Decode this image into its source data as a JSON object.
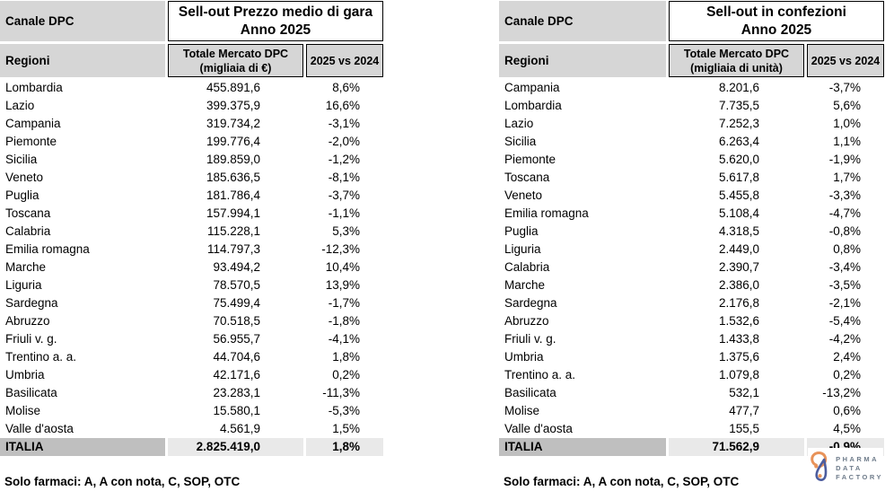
{
  "chart_data": [
    {
      "type": "table",
      "corner_label": "Canale DPC",
      "title_line1": "Sell-out Prezzo medio di gara",
      "title_line2": "Anno 2025",
      "row_dim_label": "Regioni",
      "value_col_line1": "Totale Mercato DPC",
      "value_col_line2": "(migliaia di €)",
      "pct_col": "2025 vs 2024",
      "rows": [
        [
          "Lombardia",
          "455.891,6",
          "8,6%"
        ],
        [
          "Lazio",
          "399.375,9",
          "16,6%"
        ],
        [
          "Campania",
          "319.734,2",
          "-3,1%"
        ],
        [
          "Piemonte",
          "199.776,4",
          "-2,0%"
        ],
        [
          "Sicilia",
          "189.859,0",
          "-1,2%"
        ],
        [
          "Veneto",
          "185.636,5",
          "-8,1%"
        ],
        [
          "Puglia",
          "181.786,4",
          "-3,7%"
        ],
        [
          "Toscana",
          "157.994,1",
          "-1,1%"
        ],
        [
          "Calabria",
          "115.228,1",
          "5,3%"
        ],
        [
          "Emilia romagna",
          "114.797,3",
          "-12,3%"
        ],
        [
          "Marche",
          "93.494,2",
          "10,4%"
        ],
        [
          "Liguria",
          "78.570,5",
          "13,9%"
        ],
        [
          "Sardegna",
          "75.499,4",
          "-1,7%"
        ],
        [
          "Abruzzo",
          "70.518,5",
          "-1,8%"
        ],
        [
          "Friuli v. g.",
          "56.955,7",
          "-4,1%"
        ],
        [
          "Trentino a. a.",
          "44.704,6",
          "1,8%"
        ],
        [
          "Umbria",
          "42.171,6",
          "0,2%"
        ],
        [
          "Basilicata",
          "23.283,1",
          "-11,3%"
        ],
        [
          "Molise",
          "15.580,1",
          "-5,3%"
        ],
        [
          "Valle d'aosta",
          "4.561,9",
          "1,5%"
        ]
      ],
      "total": [
        "ITALIA",
        "2.825.419,0",
        "1,8%"
      ],
      "footnote": "Solo farmaci: A, A con nota, C, SOP, OTC"
    },
    {
      "type": "table",
      "corner_label": "Canale DPC",
      "title_line1": "Sell-out in confezioni",
      "title_line2": "Anno 2025",
      "row_dim_label": "Regioni",
      "value_col_line1": "Totale Mercato DPC",
      "value_col_line2": "(migliaia di unità)",
      "pct_col": "2025 vs 2024",
      "rows": [
        [
          "Campania",
          "8.201,6",
          "-3,7%"
        ],
        [
          "Lombardia",
          "7.735,5",
          "5,6%"
        ],
        [
          "Lazio",
          "7.252,3",
          "1,0%"
        ],
        [
          "Sicilia",
          "6.263,4",
          "1,1%"
        ],
        [
          "Piemonte",
          "5.620,0",
          "-1,9%"
        ],
        [
          "Toscana",
          "5.617,8",
          "1,7%"
        ],
        [
          "Veneto",
          "5.455,8",
          "-3,3%"
        ],
        [
          "Emilia romagna",
          "5.108,4",
          "-4,7%"
        ],
        [
          "Puglia",
          "4.318,5",
          "-0,8%"
        ],
        [
          "Liguria",
          "2.449,0",
          "0,8%"
        ],
        [
          "Calabria",
          "2.390,7",
          "-3,4%"
        ],
        [
          "Marche",
          "2.386,0",
          "-3,5%"
        ],
        [
          "Sardegna",
          "2.176,8",
          "-2,1%"
        ],
        [
          "Abruzzo",
          "1.532,6",
          "-5,4%"
        ],
        [
          "Friuli v. g.",
          "1.433,8",
          "-4,2%"
        ],
        [
          "Umbria",
          "1.375,6",
          "2,4%"
        ],
        [
          "Trentino a. a.",
          "1.079,8",
          "0,2%"
        ],
        [
          "Basilicata",
          "532,1",
          "-13,2%"
        ],
        [
          "Molise",
          "477,7",
          "0,6%"
        ],
        [
          "Valle d'aosta",
          "155,5",
          "4,5%"
        ]
      ],
      "total": [
        "ITALIA",
        "71.562,9",
        "-0,9%"
      ],
      "footnote": "Solo farmaci: A, A con nota, C, SOP, OTC"
    }
  ],
  "logo": {
    "line1": "PHARMA",
    "line2": "DATA",
    "line3": "FACTORY"
  },
  "colors": {
    "header_gray": "#d6d6d6",
    "total_label_gray": "#bfbfbf",
    "total_value_gray": "#e9e9e9",
    "border": "#000000",
    "logo_orange": "#e8935a",
    "logo_blue": "#4d5d9e",
    "logo_text": "#6e7b8a"
  }
}
